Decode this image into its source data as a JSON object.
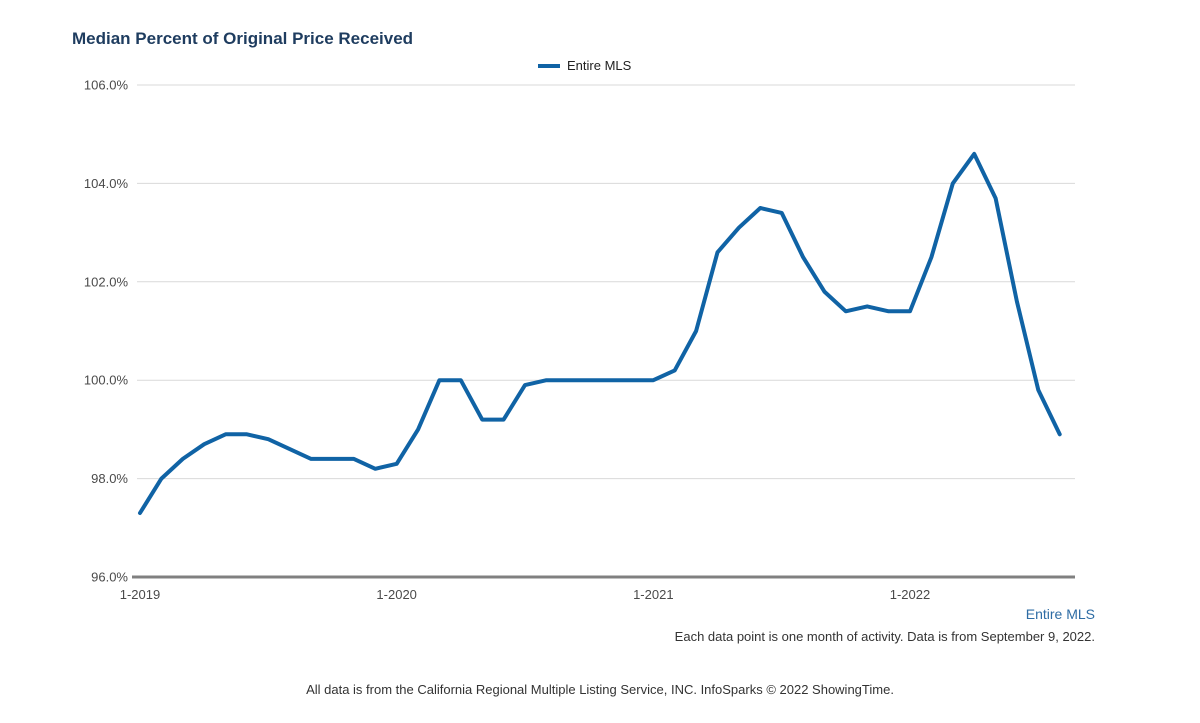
{
  "page": {
    "title": "Median Percent of Original Price Received",
    "legend": {
      "label": "Entire MLS"
    },
    "footer": {
      "series_label": "Entire MLS",
      "note": "Each data point is one month of activity. Data is from September 9, 2022.",
      "disclaimer": "All data is from the California Regional Multiple Listing Service, INC. InfoSparks © 2022 ShowingTime."
    }
  },
  "colors": {
    "title": "#1e3c5f",
    "series_line": "#1063a5",
    "footer_series_label": "#2e6ca4",
    "gridline": "#d9d9d9",
    "axis_line": "#808080",
    "tick_label": "#4a4a4a"
  },
  "chart_data": {
    "type": "line",
    "title": "Median Percent of Original Price Received",
    "xlabel": "",
    "ylabel": "",
    "ylim": [
      96,
      106
    ],
    "grid": "horizontal",
    "legend_position": "top-center",
    "grid_color": "#d9d9d9",
    "axis_color": "#808080",
    "y_ticks": [
      {
        "value": 96,
        "label": "96.0%"
      },
      {
        "value": 98,
        "label": "98.0%"
      },
      {
        "value": 100,
        "label": "100.0%"
      },
      {
        "value": 102,
        "label": "102.0%"
      },
      {
        "value": 104,
        "label": "104.0%"
      },
      {
        "value": 106,
        "label": "106.0%"
      }
    ],
    "x_ticks": [
      {
        "index": 0,
        "label": "1-2019"
      },
      {
        "index": 12,
        "label": "1-2020"
      },
      {
        "index": 24,
        "label": "1-2021"
      },
      {
        "index": 36,
        "label": "1-2022"
      }
    ],
    "x": [
      "1-2019",
      "2-2019",
      "3-2019",
      "4-2019",
      "5-2019",
      "6-2019",
      "7-2019",
      "8-2019",
      "9-2019",
      "10-2019",
      "11-2019",
      "12-2019",
      "1-2020",
      "2-2020",
      "3-2020",
      "4-2020",
      "5-2020",
      "6-2020",
      "7-2020",
      "8-2020",
      "9-2020",
      "10-2020",
      "11-2020",
      "12-2020",
      "1-2021",
      "2-2021",
      "3-2021",
      "4-2021",
      "5-2021",
      "6-2021",
      "7-2021",
      "8-2021",
      "9-2021",
      "10-2021",
      "11-2021",
      "12-2021",
      "1-2022",
      "2-2022",
      "3-2022",
      "4-2022",
      "5-2022",
      "6-2022",
      "7-2022",
      "8-2022"
    ],
    "series": [
      {
        "name": "Entire MLS",
        "color": "#1063a5",
        "values": [
          97.3,
          98.0,
          98.4,
          98.7,
          98.9,
          98.9,
          98.8,
          98.6,
          98.4,
          98.4,
          98.4,
          98.2,
          98.3,
          99.0,
          100.0,
          100.0,
          99.2,
          99.2,
          99.9,
          100.0,
          100.0,
          100.0,
          100.0,
          100.0,
          100.0,
          100.2,
          101.0,
          102.6,
          103.1,
          103.5,
          103.4,
          102.5,
          101.8,
          101.4,
          101.5,
          101.4,
          101.4,
          102.5,
          104.0,
          104.6,
          103.7,
          101.6,
          99.8,
          98.9
        ]
      }
    ]
  }
}
